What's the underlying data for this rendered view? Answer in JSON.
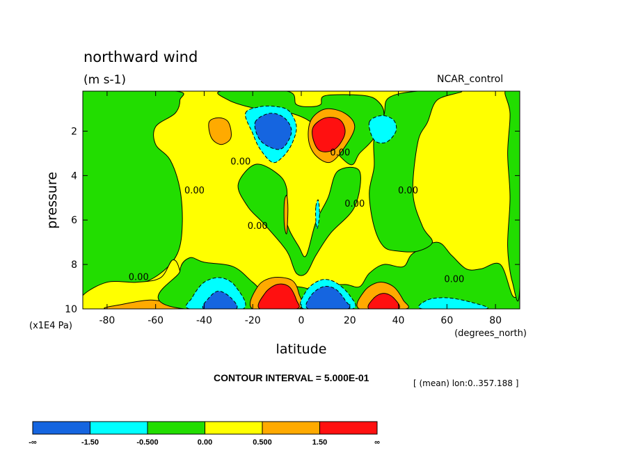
{
  "chart_data": {
    "type": "heatmap",
    "title": "northward wind",
    "units": "(m s-1)",
    "dataset": "NCAR_control",
    "xlabel": "latitude",
    "x_units": "(degrees_north)",
    "ylabel": "pressure",
    "y_units": "(x1E4 Pa)",
    "xlim": [
      -90,
      90
    ],
    "ylim": [
      0.2,
      10
    ],
    "x_ticks": [
      -80,
      -60,
      -40,
      -20,
      0,
      20,
      40,
      60,
      80
    ],
    "x_tick_labels": [
      "-80",
      "-60",
      "-40",
      "-20",
      "0",
      "20",
      "40",
      "60",
      "80"
    ],
    "y_ticks": [
      2,
      4,
      6,
      8,
      10
    ],
    "y_tick_labels": [
      "2",
      "4",
      "6",
      "8",
      "10"
    ],
    "contour_interval_text": "CONTOUR INTERVAL = 5.000E-01",
    "mean_text": "[ (mean) lon:0..357.188 ]",
    "contour_labels": [
      {
        "text": "0.00",
        "lat": -25,
        "p": 3.5
      },
      {
        "text": "0.00",
        "lat": -44,
        "p": 4.8
      },
      {
        "text": "0.00",
        "lat": -18,
        "p": 6.4
      },
      {
        "text": "0.00",
        "lat": 16,
        "p": 3.1
      },
      {
        "text": "0.00",
        "lat": 22,
        "p": 5.4
      },
      {
        "text": "0.00",
        "lat": 44,
        "p": 4.8
      },
      {
        "text": "0.00",
        "lat": -67,
        "p": 8.7
      },
      {
        "text": "0.00",
        "lat": 63,
        "p": 8.8
      }
    ],
    "colorbar": {
      "bins": [
        {
          "color": "#1565e0",
          "range": [
            "-∞",
            "-1.50"
          ]
        },
        {
          "color": "#00ffff",
          "range": [
            "-1.50",
            "-0.500"
          ]
        },
        {
          "color": "#22dd00",
          "range": [
            "-0.500",
            "0.00"
          ]
        },
        {
          "color": "#ffff00",
          "range": [
            "0.00",
            "0.500"
          ]
        },
        {
          "color": "#ffaa00",
          "range": [
            "0.500",
            "1.50"
          ]
        },
        {
          "color": "#ff1010",
          "range": [
            "1.50",
            "∞"
          ]
        }
      ],
      "labels": [
        "-∞",
        "-1.50",
        "-0.500",
        "0.00",
        "0.500",
        "1.50",
        "∞"
      ]
    },
    "features": [
      {
        "name": "green-west",
        "level": "negative-weak",
        "color": "#22dd00",
        "pts": [
          [
            -90,
            0.2
          ],
          [
            -52,
            0.2
          ],
          [
            -50,
            0.6
          ],
          [
            -52,
            1.2
          ],
          [
            -60,
            1.8
          ],
          [
            -60,
            2.6
          ],
          [
            -54,
            3.3
          ],
          [
            -50,
            4.6
          ],
          [
            -49,
            6.2
          ],
          [
            -51,
            7.5
          ],
          [
            -58,
            8.4
          ],
          [
            -68,
            8.9
          ],
          [
            -80,
            8.8
          ],
          [
            -90,
            9.3
          ]
        ]
      },
      {
        "name": "yellow-west-bottom",
        "level": "positive-weak",
        "color": "#ffff00",
        "pts": [
          [
            -90,
            9.4
          ],
          [
            -80,
            8.8
          ],
          [
            -68,
            8.8
          ],
          [
            -58,
            8.6
          ],
          [
            -53,
            7.8
          ],
          [
            -50,
            8.3
          ],
          [
            -48,
            10
          ],
          [
            -90,
            10
          ]
        ]
      },
      {
        "name": "orange-west-bottom",
        "level": "positive-medium",
        "color": "#ffaa00",
        "pts": [
          [
            -80,
            10
          ],
          [
            -74,
            9.8
          ],
          [
            -62,
            9.6
          ],
          [
            -53,
            9.8
          ],
          [
            -50,
            10
          ]
        ]
      },
      {
        "name": "green-low-west",
        "level": "negative-weak",
        "color": "#22dd00",
        "pts": [
          [
            -50,
            8.3
          ],
          [
            -46,
            7.7
          ],
          [
            -40,
            7.9
          ],
          [
            -28,
            8.1
          ],
          [
            -20,
            8.8
          ],
          [
            -14,
            9.3
          ],
          [
            -5,
            9.0
          ],
          [
            3,
            9.1
          ],
          [
            6,
            9.4
          ],
          [
            10,
            9.0
          ],
          [
            18,
            8.9
          ],
          [
            24,
            9.0
          ],
          [
            28,
            8.4
          ],
          [
            34,
            8.0
          ],
          [
            42,
            8.1
          ],
          [
            46,
            7.5
          ],
          [
            56,
            7.0
          ],
          [
            62,
            7.6
          ],
          [
            68,
            8.2
          ],
          [
            74,
            8.2
          ],
          [
            82,
            8.0
          ],
          [
            87,
            9.4
          ],
          [
            90,
            9.4
          ],
          [
            90,
            10
          ],
          [
            -48,
            10
          ]
        ]
      },
      {
        "name": "green-central",
        "level": "negative-weak",
        "color": "#22dd00",
        "pts": [
          [
            -26,
            4.4
          ],
          [
            -19,
            3.5
          ],
          [
            -10,
            3.9
          ],
          [
            -6,
            4.6
          ],
          [
            -6,
            6.1
          ],
          [
            -1,
            7.2
          ],
          [
            2,
            7.6
          ],
          [
            6,
            6.1
          ],
          [
            11,
            5.0
          ],
          [
            15,
            3.8
          ],
          [
            24,
            3.8
          ],
          [
            22,
            5.4
          ],
          [
            12,
            6.6
          ],
          [
            6,
            7.6
          ],
          [
            2,
            8.4
          ],
          [
            -2,
            8.4
          ],
          [
            -5,
            7.6
          ],
          [
            -8,
            7.1
          ],
          [
            -16,
            6.1
          ],
          [
            -22,
            5.4
          ]
        ]
      },
      {
        "name": "green-upper",
        "level": "negative-weak",
        "color": "#22dd00",
        "pts": [
          [
            -33,
            0.2
          ],
          [
            -6,
            0.2
          ],
          [
            -2,
            0.8
          ],
          [
            4,
            0.9
          ],
          [
            8,
            0.8
          ],
          [
            10,
            0.4
          ],
          [
            26,
            0.4
          ],
          [
            32,
            0.7
          ],
          [
            34,
            1.3
          ],
          [
            30,
            2.3
          ],
          [
            24,
            3.0
          ],
          [
            20,
            3.5
          ],
          [
            10,
            2.4
          ],
          [
            4,
            1.6
          ],
          [
            -4,
            1.2
          ],
          [
            -12,
            1.1
          ],
          [
            -22,
            0.9
          ],
          [
            -30,
            0.6
          ]
        ]
      },
      {
        "name": "green-east",
        "level": "negative-weak",
        "color": "#22dd00",
        "pts": [
          [
            30,
            2.3
          ],
          [
            34,
            1.3
          ],
          [
            36,
            0.5
          ],
          [
            48,
            0.2
          ],
          [
            66,
            0.2
          ],
          [
            56,
            0.6
          ],
          [
            52,
            1.6
          ],
          [
            48,
            2.5
          ],
          [
            46,
            4.8
          ],
          [
            50,
            6.3
          ],
          [
            54,
            7.0
          ],
          [
            48,
            7.4
          ],
          [
            40,
            7.4
          ],
          [
            34,
            7.2
          ],
          [
            30,
            6.3
          ],
          [
            28,
            4.8
          ],
          [
            30,
            3.6
          ]
        ]
      },
      {
        "name": "green-east-edge",
        "level": "negative-weak",
        "color": "#22dd00",
        "pts": [
          [
            84,
            0.2
          ],
          [
            90,
            0.2
          ],
          [
            90,
            9.0
          ],
          [
            87,
            8.8
          ],
          [
            85,
            7.2
          ],
          [
            86,
            5.0
          ],
          [
            85,
            3.0
          ],
          [
            86,
            1.2
          ]
        ]
      },
      {
        "name": "cyan-upper-west",
        "level": "negative-medium",
        "color": "#00ffff",
        "pts": [
          [
            -23,
            1.2
          ],
          [
            -17,
            0.9
          ],
          [
            -10,
            0.9
          ],
          [
            -5,
            1.1
          ],
          [
            -2,
            1.8
          ],
          [
            -4,
            2.6
          ],
          [
            -8,
            3.2
          ],
          [
            -12,
            3.4
          ],
          [
            -17,
            2.8
          ],
          [
            -20,
            2.1
          ]
        ]
      },
      {
        "name": "blue-upper-west",
        "level": "negative-strong",
        "color": "#1565e0",
        "pts": [
          [
            -19,
            1.6
          ],
          [
            -13,
            1.2
          ],
          [
            -7,
            1.4
          ],
          [
            -4,
            2.0
          ],
          [
            -7,
            2.7
          ],
          [
            -11,
            2.8
          ],
          [
            -17,
            2.4
          ]
        ]
      },
      {
        "name": "cyan-upper-east",
        "level": "negative-medium",
        "color": "#00ffff",
        "pts": [
          [
            28,
            1.6
          ],
          [
            33,
            1.3
          ],
          [
            38,
            1.5
          ],
          [
            39,
            2.0
          ],
          [
            35,
            2.5
          ],
          [
            30,
            2.4
          ]
        ]
      },
      {
        "name": "orange-upper-west",
        "level": "positive-medium",
        "color": "#ffaa00",
        "pts": [
          [
            -38,
            1.6
          ],
          [
            -34,
            1.4
          ],
          [
            -30,
            1.6
          ],
          [
            -29,
            2.3
          ],
          [
            -33,
            2.6
          ],
          [
            -37,
            2.3
          ]
        ]
      },
      {
        "name": "orange-upper-east",
        "level": "positive-medium",
        "color": "#ffaa00",
        "pts": [
          [
            4,
            1.5
          ],
          [
            10,
            1.0
          ],
          [
            18,
            1.2
          ],
          [
            22,
            1.8
          ],
          [
            18,
            2.7
          ],
          [
            12,
            3.4
          ],
          [
            6,
            3.1
          ],
          [
            3,
            2.4
          ]
        ]
      },
      {
        "name": "red-upper-east",
        "level": "positive-strong",
        "color": "#ff1010",
        "pts": [
          [
            5,
            1.8
          ],
          [
            10,
            1.4
          ],
          [
            16,
            1.5
          ],
          [
            18,
            2.1
          ],
          [
            14,
            2.8
          ],
          [
            8,
            2.9
          ],
          [
            5,
            2.4
          ]
        ]
      },
      {
        "name": "cyan-bottom-west",
        "level": "negative-medium",
        "color": "#00ffff",
        "pts": [
          [
            -46,
            10
          ],
          [
            -45,
            9.5
          ],
          [
            -40,
            8.8
          ],
          [
            -33,
            8.6
          ],
          [
            -27,
            9.0
          ],
          [
            -24,
            10
          ]
        ]
      },
      {
        "name": "blue-bottom-west",
        "level": "negative-strong",
        "color": "#1565e0",
        "pts": [
          [
            -40,
            10
          ],
          [
            -38,
            9.5
          ],
          [
            -34,
            9.2
          ],
          [
            -29,
            9.5
          ],
          [
            -27,
            10
          ]
        ]
      },
      {
        "name": "orange-bottom-west",
        "level": "positive-medium",
        "color": "#ffaa00",
        "pts": [
          [
            -20,
            10
          ],
          [
            -18,
            9.0
          ],
          [
            -12,
            8.6
          ],
          [
            -4,
            8.7
          ],
          [
            -1,
            9.3
          ],
          [
            -1,
            10
          ]
        ]
      },
      {
        "name": "red-bottom-west",
        "level": "positive-strong",
        "color": "#ff1010",
        "pts": [
          [
            -17,
            10
          ],
          [
            -15,
            9.3
          ],
          [
            -10,
            8.9
          ],
          [
            -5,
            9.0
          ],
          [
            -2,
            9.6
          ],
          [
            -2,
            10
          ]
        ]
      },
      {
        "name": "cyan-bottom-center",
        "level": "negative-medium",
        "color": "#00ffff",
        "pts": [
          [
            1,
            10
          ],
          [
            2,
            9.2
          ],
          [
            8,
            8.7
          ],
          [
            14,
            8.8
          ],
          [
            20,
            9.4
          ],
          [
            21,
            10
          ]
        ]
      },
      {
        "name": "blue-bottom-center",
        "level": "negative-strong",
        "color": "#1565e0",
        "pts": [
          [
            3,
            10
          ],
          [
            4,
            9.4
          ],
          [
            9,
            9.0
          ],
          [
            14,
            9.1
          ],
          [
            18,
            9.6
          ],
          [
            19,
            10
          ]
        ]
      },
      {
        "name": "orange-bottom-east",
        "level": "positive-medium",
        "color": "#ffaa00",
        "pts": [
          [
            24,
            10
          ],
          [
            26,
            9.2
          ],
          [
            32,
            8.8
          ],
          [
            38,
            9.0
          ],
          [
            42,
            9.6
          ],
          [
            43,
            10
          ]
        ]
      },
      {
        "name": "red-bottom-east",
        "level": "positive-strong",
        "color": "#ff1010",
        "pts": [
          [
            28,
            10
          ],
          [
            30,
            9.5
          ],
          [
            34,
            9.3
          ],
          [
            38,
            9.5
          ],
          [
            40,
            10
          ]
        ]
      },
      {
        "name": "cyan-bottom-east",
        "level": "negative-medium",
        "color": "#00ffff",
        "pts": [
          [
            50,
            10
          ],
          [
            52,
            9.6
          ],
          [
            60,
            9.5
          ],
          [
            70,
            9.7
          ],
          [
            76,
            10
          ]
        ]
      },
      {
        "name": "orange-sliver-center",
        "level": "positive-medium",
        "color": "#ffaa00",
        "pts": [
          [
            -7,
            5.2
          ],
          [
            -6,
            4.9
          ],
          [
            -5.5,
            5.5
          ],
          [
            -6,
            6.6
          ],
          [
            -7,
            6.2
          ]
        ]
      },
      {
        "name": "cyan-sliver-center",
        "level": "negative-medium",
        "color": "#00ffff",
        "pts": [
          [
            6,
            5.4
          ],
          [
            7,
            5.1
          ],
          [
            7.5,
            5.8
          ],
          [
            6.5,
            6.4
          ],
          [
            6,
            6.0
          ]
        ]
      }
    ]
  }
}
